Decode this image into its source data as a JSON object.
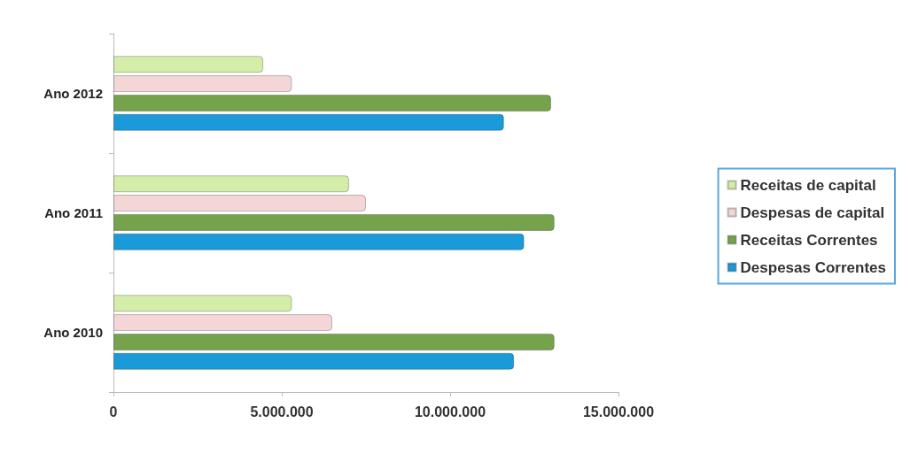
{
  "chart_data": {
    "type": "bar",
    "orientation": "horizontal",
    "categories": [
      "Ano 2012",
      "Ano 2011",
      "Ano 2010"
    ],
    "series": [
      {
        "name": "Receitas de capital",
        "color": "#d4eeaa",
        "values": [
          4450000,
          7000000,
          5300000
        ]
      },
      {
        "name": "Despesas de capital",
        "color": "#f5d6d6",
        "values": [
          5300000,
          7500000,
          6500000
        ]
      },
      {
        "name": "Receitas Correntes",
        "color": "#74a34c",
        "values": [
          13000000,
          13100000,
          13100000
        ]
      },
      {
        "name": "Despesas Correntes",
        "color": "#1a9ad8",
        "values": [
          11600000,
          12200000,
          11900000
        ]
      }
    ],
    "xlim": [
      0,
      15000000
    ],
    "xticks": [
      {
        "value": 0,
        "label": "0"
      },
      {
        "value": 5000000,
        "label": "5.000.000"
      },
      {
        "value": 10000000,
        "label": "10.000.000"
      },
      {
        "value": 15000000,
        "label": "15.000.000"
      }
    ],
    "grid": false,
    "legend": "right"
  }
}
